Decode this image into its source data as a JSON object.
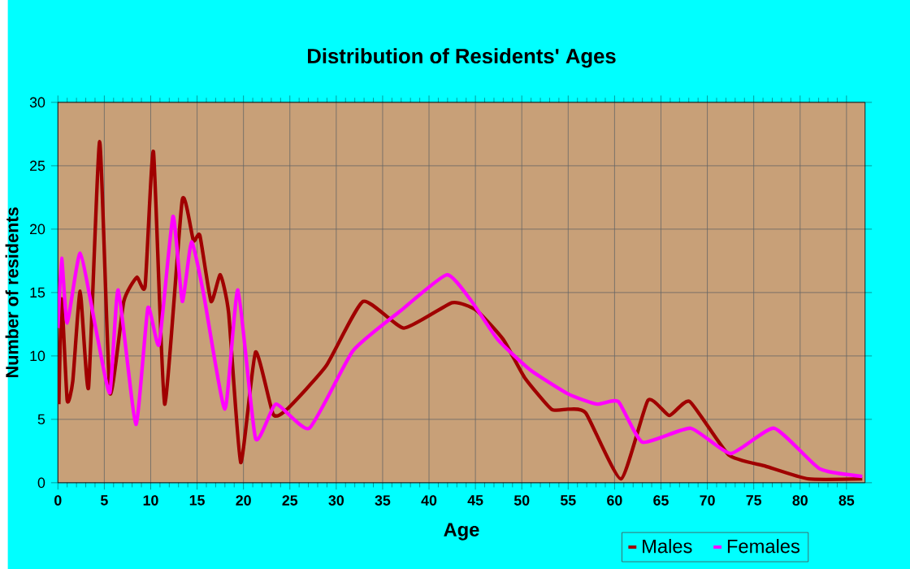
{
  "chart_data": {
    "type": "line",
    "title": "Distribution of Residents' Ages",
    "xlabel": "Age",
    "ylabel": "Number of residents",
    "xlim": [
      0,
      87
    ],
    "xticks": [
      0,
      5,
      10,
      15,
      20,
      25,
      30,
      35,
      40,
      45,
      50,
      55,
      60,
      65,
      70,
      75,
      80,
      85
    ],
    "ylim": [
      0,
      30
    ],
    "yticks": [
      0,
      5,
      10,
      15,
      20,
      25,
      30
    ],
    "grid": true,
    "legend": "bottom right",
    "series": [
      {
        "name": "Males",
        "color": "#a00000",
        "x": [
          0.1,
          0.4,
          1.0,
          1.6,
          2.4,
          3.3,
          4.5,
          5.6,
          7.1,
          8.5,
          9.4,
          10.3,
          11.5,
          13.4,
          14.6,
          15.3,
          16.5,
          17.5,
          18.4,
          19.7,
          21.3,
          23.2,
          24.7,
          28.9,
          32.9,
          37.3,
          42.5,
          45.1,
          48.0,
          50.3,
          53.2,
          55.0,
          56.9,
          60.7,
          63.6,
          65.9,
          68.1,
          72.3,
          76.3,
          80.9,
          86.7
        ],
        "values": [
          6.2,
          14.5,
          6.5,
          8,
          15.1,
          7.5,
          26.9,
          7.1,
          14.3,
          16.2,
          15.5,
          26.1,
          6.2,
          22.3,
          19.1,
          19.5,
          14.3,
          16.4,
          13.4,
          1.6,
          10.3,
          5.4,
          5.8,
          9.2,
          14.3,
          12.2,
          14.2,
          13.6,
          11.3,
          8.3,
          5.8,
          5.8,
          5.5,
          0.3,
          6.5,
          5.3,
          6.4,
          2.2,
          1.3,
          0.3,
          0.3
        ]
      },
      {
        "name": "Females",
        "color": "#ff00ff",
        "x": [
          0.0,
          0.4,
          1.0,
          2.4,
          4.2,
          5.6,
          6.5,
          8.4,
          9.7,
          10.9,
          12.4,
          13.4,
          14.4,
          15.7,
          18.0,
          19.4,
          21.3,
          23.5,
          27.1,
          31.8,
          37.0,
          41.9,
          44.5,
          47.4,
          50.9,
          55.0,
          58.1,
          60.4,
          63.0,
          68.2,
          72.5,
          77.2,
          82.1,
          86.7
        ],
        "values": [
          12.2,
          17.7,
          12.6,
          18.1,
          11.7,
          7.1,
          15.2,
          4.6,
          13.8,
          10.9,
          21.0,
          14.3,
          19.0,
          14.9,
          5.8,
          15.2,
          3.5,
          6.2,
          4.3,
          10.4,
          13.6,
          16.4,
          14.4,
          11.3,
          8.9,
          7.0,
          6.2,
          6.4,
          3.2,
          4.3,
          2.3,
          4.3,
          1.1,
          0.5
        ]
      }
    ]
  }
}
